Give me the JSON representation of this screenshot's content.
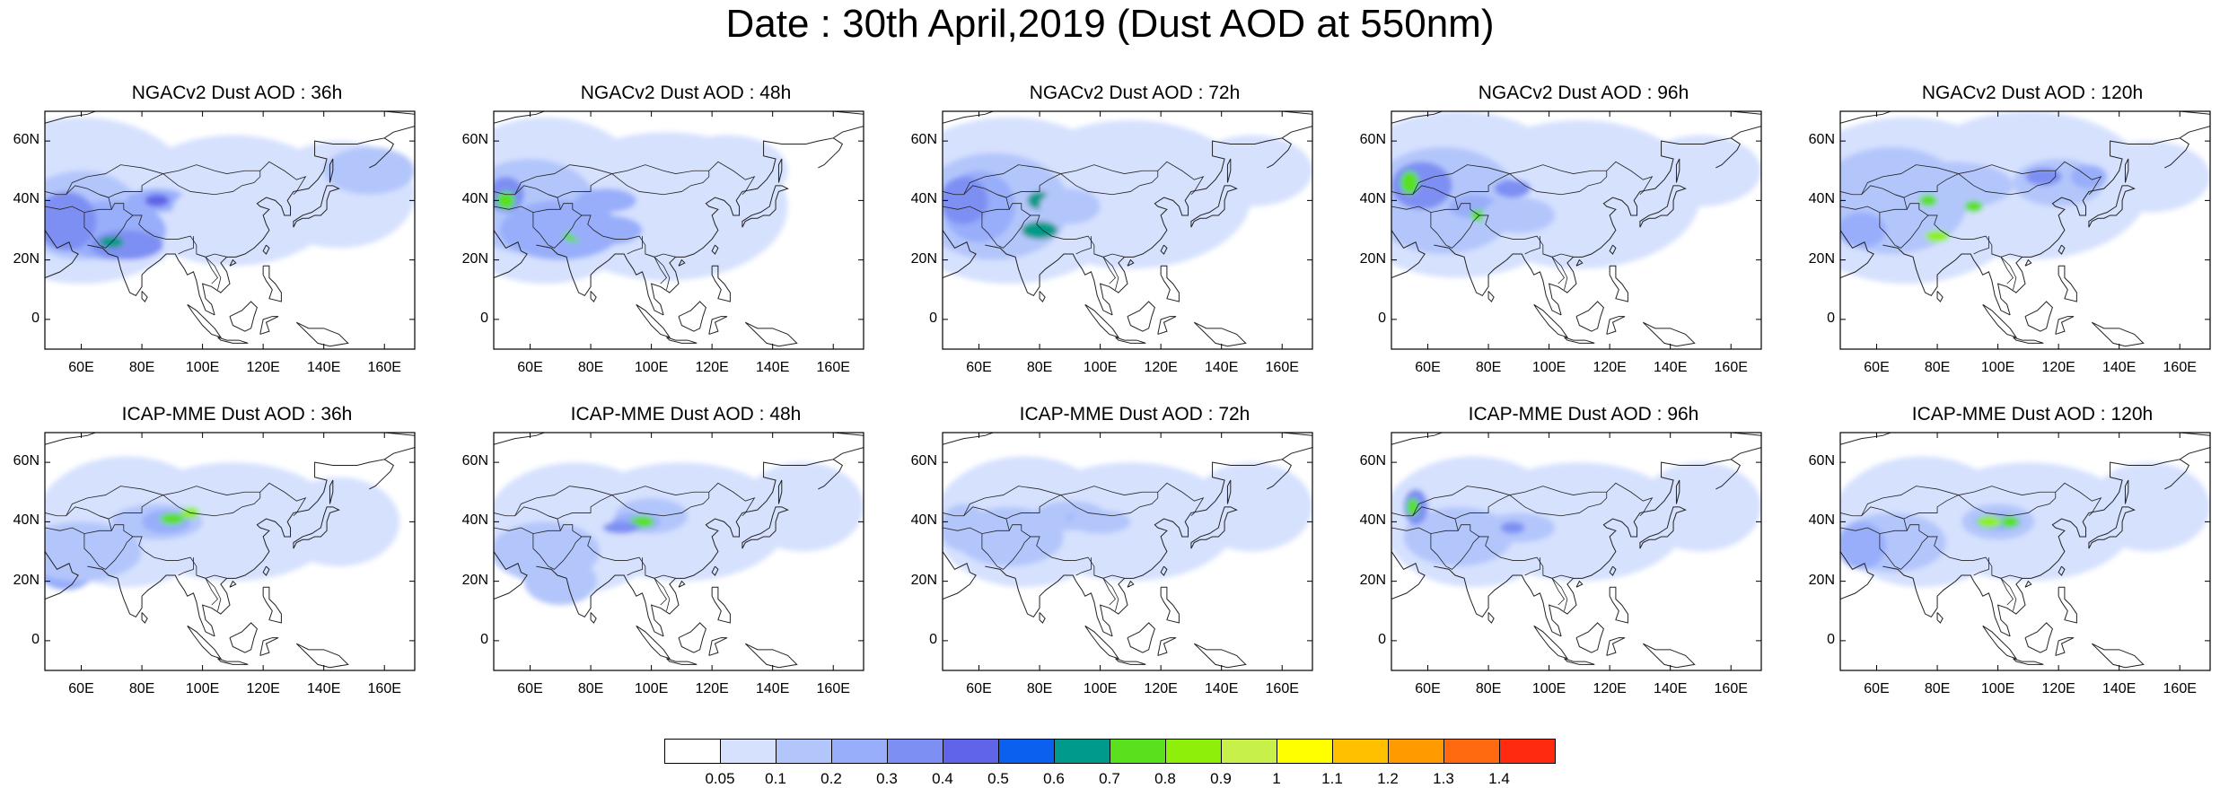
{
  "title": "Date : 30th April,2019 (Dust AOD at 550nm)",
  "map_extent": {
    "lon": [
      48,
      170
    ],
    "lat": [
      -10,
      70
    ]
  },
  "y_ticks": [
    "60N",
    "40N",
    "20N",
    "0"
  ],
  "x_ticks": [
    "60E",
    "80E",
    "100E",
    "120E",
    "140E",
    "160E"
  ],
  "panels": [
    {
      "title": "NGACv2 Dust AOD : 36h"
    },
    {
      "title": "NGACv2 Dust AOD : 48h"
    },
    {
      "title": "NGACv2 Dust AOD : 72h"
    },
    {
      "title": "NGACv2 Dust AOD : 96h"
    },
    {
      "title": "NGACv2 Dust AOD : 120h"
    },
    {
      "title": "ICAP-MME Dust AOD : 36h"
    },
    {
      "title": "ICAP-MME Dust AOD : 48h"
    },
    {
      "title": "ICAP-MME Dust AOD : 72h"
    },
    {
      "title": "ICAP-MME Dust AOD : 96h"
    },
    {
      "title": "ICAP-MME Dust AOD : 120h"
    }
  ],
  "colorbar": {
    "labels": [
      "0.05",
      "0.1",
      "0.2",
      "0.3",
      "0.4",
      "0.5",
      "0.6",
      "0.7",
      "0.8",
      "0.9",
      "1",
      "1.1",
      "1.2",
      "1.3",
      "1.4"
    ],
    "colors": [
      "#ffffff",
      "#d6e1fe",
      "#b3c6fb",
      "#98aefa",
      "#7e8ff3",
      "#5f64e8",
      "#0c60f0",
      "#009a8c",
      "#5ae01c",
      "#8ef00a",
      "#c8f04a",
      "#ffff00",
      "#ffc000",
      "#ff9a00",
      "#ff6a10",
      "#ff2a10"
    ]
  }
}
